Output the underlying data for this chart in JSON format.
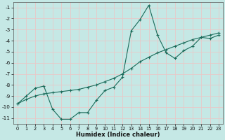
{
  "title": "",
  "xlabel": "Humidex (Indice chaleur)",
  "ylabel": "",
  "background_color": "#c5e8e5",
  "line_color": "#1a6b5a",
  "grid_color": "#e8c8c8",
  "x": [
    0,
    1,
    2,
    3,
    4,
    5,
    6,
    7,
    8,
    9,
    10,
    11,
    12,
    13,
    14,
    15,
    16,
    17,
    18,
    19,
    20,
    21,
    22,
    23
  ],
  "y_jagged": [
    -9.7,
    -9.0,
    -8.3,
    -8.1,
    -10.2,
    -11.1,
    -11.1,
    -10.5,
    -10.5,
    -9.4,
    -8.5,
    -8.2,
    -7.3,
    -3.1,
    -2.1,
    -0.8,
    -3.5,
    -5.1,
    -5.6,
    -4.9,
    -4.5,
    -3.7,
    -3.8,
    -3.5
  ],
  "y_straight": [
    -9.7,
    -9.3,
    -9.0,
    -8.8,
    -8.7,
    -8.6,
    -8.5,
    -8.4,
    -8.2,
    -8.0,
    -7.7,
    -7.4,
    -7.0,
    -6.5,
    -5.9,
    -5.5,
    -5.1,
    -4.8,
    -4.5,
    -4.2,
    -3.9,
    -3.7,
    -3.5,
    -3.3
  ],
  "xlim": [
    -0.5,
    23.5
  ],
  "ylim": [
    -11.5,
    -0.5
  ],
  "yticks": [
    -11,
    -10,
    -9,
    -8,
    -7,
    -6,
    -5,
    -4,
    -3,
    -2,
    -1
  ],
  "xticks": [
    0,
    1,
    2,
    3,
    4,
    5,
    6,
    7,
    8,
    9,
    10,
    11,
    12,
    13,
    14,
    15,
    16,
    17,
    18,
    19,
    20,
    21,
    22,
    23
  ]
}
